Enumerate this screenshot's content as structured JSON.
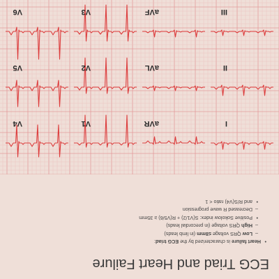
{
  "slide": {
    "title": "ECG Triad and Heart Failure",
    "bullets": [
      {
        "level": 1,
        "marker": "•",
        "parts": [
          {
            "t": "Heart failure",
            "b": true
          },
          {
            "t": " is characterized by the ",
            "b": false
          },
          {
            "t": "ECG triad",
            "b": true
          },
          {
            "t": ":",
            "b": false
          }
        ]
      },
      {
        "level": 2,
        "marker": "–",
        "parts": [
          {
            "t": "Low",
            "b": true
          },
          {
            "t": " QRS voltage ",
            "b": false
          },
          {
            "t": "≤8mm",
            "b": true
          },
          {
            "t": " (in limb leads)",
            "b": false
          }
        ]
      },
      {
        "level": 2,
        "marker": "–",
        "parts": [
          {
            "t": "High",
            "b": true
          },
          {
            "t": " QRS voltage (in precordial leads)",
            "b": false
          }
        ]
      },
      {
        "level": 2,
        "marker": "•",
        "parts": [
          {
            "t": "Positive Sokolow index: S(V1/2) + R(V5/6) ≥ 35mm",
            "b": false
          }
        ]
      },
      {
        "level": 2,
        "marker": "–",
        "parts": [
          {
            "t": "Decreased R wave progression",
            "b": false
          }
        ]
      },
      {
        "level": 2,
        "marker": "•",
        "parts": [
          {
            "t": "and R/S(V4) ratio < 1",
            "b": false
          }
        ]
      }
    ]
  },
  "ecg": {
    "leads": [
      "I",
      "aVR",
      "V1",
      "V4",
      "II",
      "aVL",
      "V2",
      "V5",
      "III",
      "aVF",
      "V3",
      "V6"
    ],
    "grid_minor_color": "#eebcbc",
    "grid_major_color": "#e39b9b",
    "trace_color": "#dc3c3c"
  }
}
